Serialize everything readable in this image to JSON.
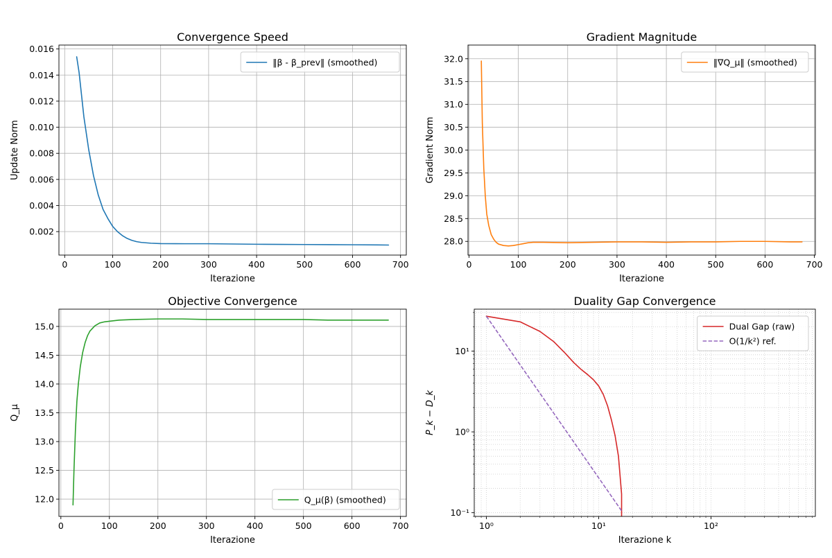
{
  "chart_data": [
    {
      "type": "line",
      "title": "Convergence Speed",
      "xlabel": "Iterazione",
      "ylabel": "Update Norm",
      "xlim": [
        -12,
        712
      ],
      "ylim": [
        0.0002,
        0.0163
      ],
      "xticks": [
        0,
        100,
        200,
        300,
        400,
        500,
        600,
        700
      ],
      "xtick_labels": [
        "0",
        "100",
        "200",
        "300",
        "400",
        "500",
        "600",
        "700"
      ],
      "yticks": [
        0.002,
        0.004,
        0.006,
        0.008,
        0.01,
        0.012,
        0.014,
        0.016
      ],
      "ytick_labels": [
        "0.002",
        "0.004",
        "0.006",
        "0.008",
        "0.010",
        "0.012",
        "0.014",
        "0.016"
      ],
      "grid": true,
      "legend_position": "top-right",
      "series": [
        {
          "name": "‖β - β_prev‖ (smoothed)",
          "color": "#1f77b4",
          "x": [
            25,
            30,
            40,
            50,
            60,
            70,
            80,
            90,
            100,
            110,
            120,
            130,
            140,
            150,
            160,
            180,
            200,
            250,
            300,
            350,
            400,
            450,
            500,
            550,
            600,
            650,
            675
          ],
          "y": [
            0.0154,
            0.0142,
            0.0108,
            0.0083,
            0.0063,
            0.0048,
            0.0037,
            0.003,
            0.0024,
            0.002,
            0.0017,
            0.00148,
            0.00133,
            0.00123,
            0.00117,
            0.00111,
            0.00108,
            0.00107,
            0.00107,
            0.00105,
            0.00103,
            0.00102,
            0.00101,
            0.001,
            0.00099,
            0.00098,
            0.00097
          ]
        }
      ]
    },
    {
      "type": "line",
      "title": "Gradient Magnitude",
      "xlabel": "Iterazione",
      "ylabel": "Gradient Norm",
      "xlim": [
        -2,
        702
      ],
      "ylim": [
        27.7,
        32.3
      ],
      "xticks": [
        0,
        100,
        200,
        300,
        400,
        500,
        600,
        700
      ],
      "xtick_labels": [
        "0",
        "100",
        "200",
        "300",
        "400",
        "500",
        "600",
        "700"
      ],
      "yticks": [
        28.0,
        28.5,
        29.0,
        29.5,
        30.0,
        30.5,
        31.0,
        31.5,
        32.0
      ],
      "ytick_labels": [
        "28.0",
        "28.5",
        "29.0",
        "29.5",
        "30.0",
        "30.5",
        "31.0",
        "31.5",
        "32.0"
      ],
      "grid": true,
      "legend_position": "top-right",
      "series": [
        {
          "name": "‖∇Q_μ‖ (smoothed)",
          "color": "#ff7f0e",
          "x": [
            25,
            27,
            30,
            33,
            36,
            40,
            45,
            50,
            55,
            60,
            70,
            80,
            90,
            100,
            110,
            120,
            130,
            150,
            200,
            250,
            300,
            350,
            400,
            450,
            500,
            550,
            600,
            650,
            675
          ],
          "y": [
            31.95,
            30.6,
            29.6,
            29.0,
            28.6,
            28.35,
            28.15,
            28.05,
            27.98,
            27.94,
            27.91,
            27.9,
            27.91,
            27.93,
            27.95,
            27.97,
            27.98,
            27.98,
            27.97,
            27.98,
            27.99,
            27.99,
            27.98,
            27.99,
            27.99,
            28.0,
            28.0,
            27.99,
            27.99
          ]
        }
      ]
    },
    {
      "type": "line",
      "title": "Objective Convergence",
      "xlabel": "Iterazione",
      "ylabel": "Q_μ",
      "xlim": [
        -4,
        712
      ],
      "ylim": [
        11.7,
        15.3
      ],
      "xticks": [
        0,
        100,
        200,
        300,
        400,
        500,
        600,
        700
      ],
      "xtick_labels": [
        "0",
        "100",
        "200",
        "300",
        "400",
        "500",
        "600",
        "700"
      ],
      "yticks": [
        12.0,
        12.5,
        13.0,
        13.5,
        14.0,
        14.5,
        15.0
      ],
      "ytick_labels": [
        "12.0",
        "12.5",
        "13.0",
        "13.5",
        "14.0",
        "14.5",
        "15.0"
      ],
      "grid": true,
      "legend_position": "bottom-right",
      "series": [
        {
          "name": "Q_μ(β) (smoothed)",
          "color": "#2ca02c",
          "x": [
            25,
            27,
            30,
            33,
            36,
            40,
            45,
            50,
            55,
            60,
            70,
            80,
            90,
            100,
            120,
            150,
            200,
            250,
            300,
            350,
            400,
            450,
            500,
            550,
            600,
            650,
            675
          ],
          "y": [
            11.9,
            12.5,
            13.2,
            13.7,
            14.0,
            14.3,
            14.55,
            14.72,
            14.84,
            14.92,
            15.01,
            15.06,
            15.08,
            15.09,
            15.11,
            15.12,
            15.13,
            15.13,
            15.12,
            15.12,
            15.12,
            15.12,
            15.12,
            15.11,
            15.11,
            15.11,
            15.11
          ]
        }
      ]
    },
    {
      "type": "line",
      "title": "Duality Gap Convergence",
      "xlabel": "Iterazione k",
      "ylabel": "P_k − D_k",
      "xscale": "log",
      "yscale": "log",
      "xlim": [
        0.78,
        850
      ],
      "ylim": [
        0.09,
        33
      ],
      "xticks": [
        1,
        10,
        100
      ],
      "xtick_labels": [
        "10⁰",
        "10¹",
        "10²"
      ],
      "yticks": [
        0.1,
        1,
        10
      ],
      "ytick_labels": [
        "10⁻¹",
        "10⁰",
        "10¹"
      ],
      "grid": true,
      "grid_style": "major and minor, dotted",
      "legend_position": "top-right",
      "series": [
        {
          "name": "Dual Gap (raw)",
          "color": "#d62728",
          "style": "solid",
          "x": [
            1,
            2,
            3,
            4,
            5,
            6,
            7,
            8,
            9,
            10,
            11,
            12,
            13,
            14,
            15,
            16,
            16
          ],
          "y": [
            27,
            23,
            17.5,
            13,
            9.5,
            7.2,
            5.9,
            5.1,
            4.4,
            3.7,
            2.9,
            2.1,
            1.4,
            0.9,
            0.5,
            0.17,
            0.09
          ]
        },
        {
          "name": "O(1/k²) ref.",
          "color": "#9467bd",
          "style": "dashed",
          "x": [
            1,
            2,
            3,
            4,
            5,
            6,
            7,
            8,
            9,
            10,
            11,
            12,
            13,
            14,
            15,
            16
          ],
          "y": [
            27,
            6.75,
            3,
            1.6875,
            1.08,
            0.75,
            0.551,
            0.4219,
            0.3333,
            0.27,
            0.2231,
            0.1875,
            0.1598,
            0.1378,
            0.12,
            0.1055
          ]
        }
      ]
    }
  ]
}
